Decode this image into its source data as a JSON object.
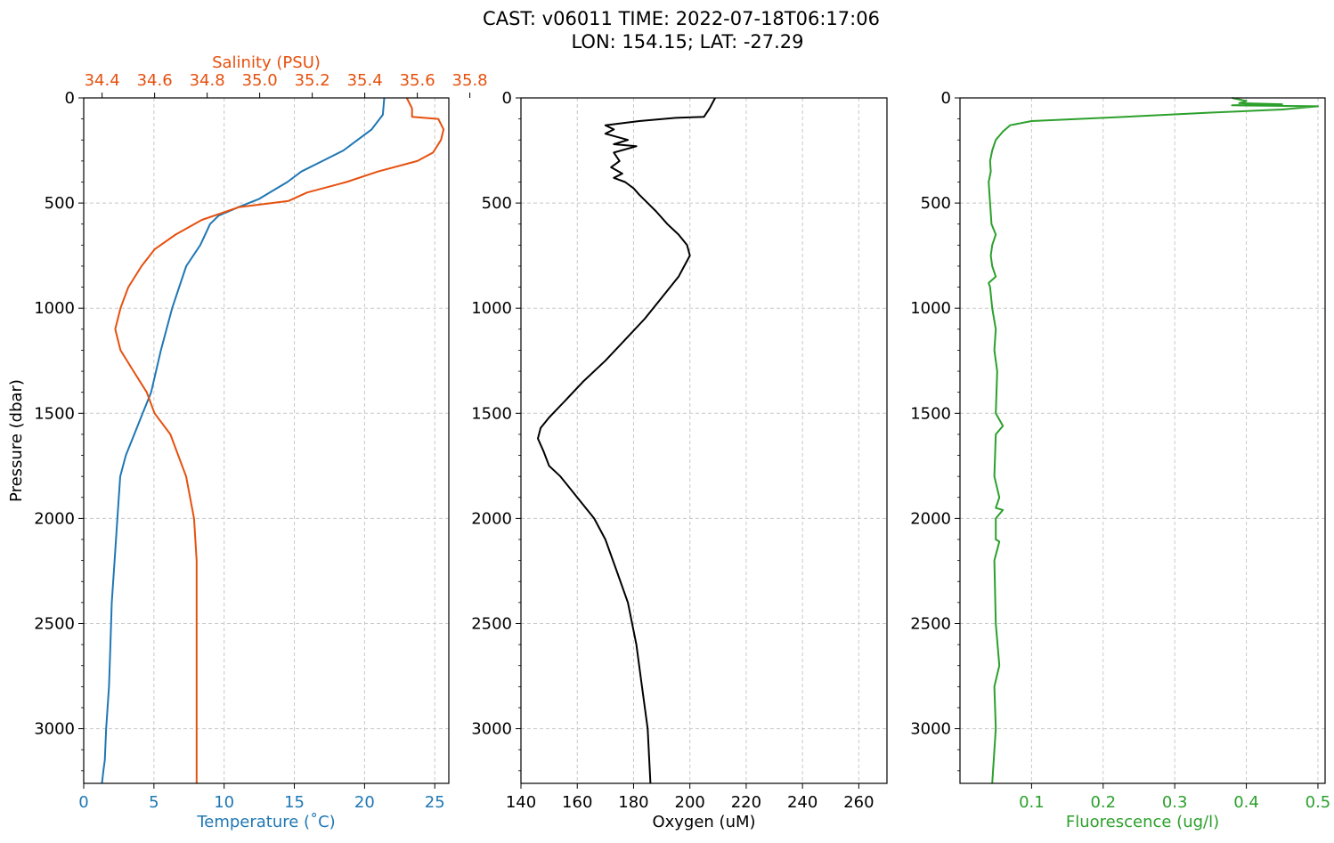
{
  "title": {
    "line1": "CAST: v06011  TIME: 2022-07-18T06:17:06",
    "line2": "LON: 154.15; LAT: -27.29"
  },
  "colors": {
    "temperature": "#1f77b4",
    "salinity": "#e6500e",
    "oxygen": "#000000",
    "fluorescence": "#2ca02c",
    "grid": "#c8c8c8"
  },
  "chart_data": [
    {
      "type": "line",
      "ylabel": "Pressure (dbar)",
      "ylim": [
        3260,
        0
      ],
      "yticks": [
        0,
        500,
        1000,
        1500,
        2000,
        2500,
        3000
      ],
      "grid": true,
      "xaxis_bottom": {
        "label": "Temperature (˚C)",
        "lim": [
          0,
          26
        ],
        "ticks": [
          0,
          5,
          10,
          15,
          20,
          25
        ]
      },
      "xaxis_top": {
        "label": "Salinity (PSU)",
        "lim": [
          34.33,
          35.72
        ],
        "ticks": [
          "34.4",
          "34.6",
          "34.8",
          "35.0",
          "35.2",
          "35.4",
          "35.6",
          "35.8"
        ]
      },
      "series": [
        {
          "axis": "bottom",
          "x": [
            21.4,
            21.3,
            20.5,
            19.5,
            18.5,
            17.0,
            15.5,
            14.5,
            13.5,
            12.5,
            11.0,
            9.6,
            9.0,
            8.3,
            7.3,
            6.3,
            5.5,
            4.8,
            4.2,
            3.6,
            3.0,
            2.6,
            2.4,
            2.2,
            2.0,
            1.9,
            1.8,
            1.6,
            1.5,
            1.4,
            1.3
          ],
          "y": [
            0,
            80,
            150,
            200,
            250,
            300,
            350,
            400,
            440,
            480,
            520,
            560,
            600,
            700,
            800,
            1000,
            1200,
            1400,
            1500,
            1600,
            1700,
            1800,
            2000,
            2200,
            2400,
            2600,
            2800,
            3000,
            3150,
            3200,
            3260
          ]
        },
        {
          "axis": "top",
          "x": [
            35.56,
            35.58,
            35.58,
            35.68,
            35.7,
            35.69,
            35.66,
            35.6,
            35.45,
            35.33,
            35.18,
            35.11,
            34.92,
            34.78,
            34.68,
            34.6,
            34.55,
            34.5,
            34.47,
            34.45,
            34.47,
            34.52,
            34.57,
            34.6,
            34.66,
            34.72,
            34.75,
            34.76,
            34.76,
            34.76,
            34.76
          ],
          "y": [
            0,
            50,
            90,
            100,
            150,
            200,
            260,
            300,
            350,
            400,
            450,
            490,
            520,
            580,
            650,
            720,
            800,
            900,
            1000,
            1100,
            1200,
            1300,
            1400,
            1500,
            1600,
            1800,
            2000,
            2200,
            2400,
            2800,
            3260
          ]
        }
      ]
    },
    {
      "type": "line",
      "xlabel": "Oxygen (uM)",
      "xlim": [
        140,
        270
      ],
      "xticks": [
        140,
        160,
        180,
        200,
        220,
        240,
        260
      ],
      "ylim": [
        3260,
        0
      ],
      "yticks": [
        0,
        500,
        1000,
        1500,
        2000,
        2500,
        3000
      ],
      "grid": true,
      "series": [
        {
          "x": [
            209,
            207,
            205,
            195,
            182,
            170,
            173,
            170,
            178,
            173,
            181,
            173,
            175,
            172,
            176,
            173,
            177,
            180,
            182,
            185,
            188,
            192,
            196,
            199,
            200,
            196,
            190,
            184,
            177,
            170,
            162,
            155,
            150,
            147,
            146,
            148,
            150,
            154,
            160,
            166,
            170,
            174,
            178,
            181,
            183,
            185,
            186
          ],
          "y": [
            0,
            50,
            90,
            95,
            110,
            130,
            150,
            170,
            200,
            220,
            230,
            260,
            300,
            330,
            360,
            380,
            400,
            430,
            460,
            500,
            540,
            600,
            650,
            700,
            750,
            850,
            950,
            1050,
            1150,
            1250,
            1350,
            1450,
            1520,
            1570,
            1620,
            1680,
            1750,
            1800,
            1900,
            2000,
            2100,
            2250,
            2400,
            2600,
            2800,
            3000,
            3260
          ]
        }
      ]
    },
    {
      "type": "line",
      "xlabel": "Fluorescence (ug/l)",
      "xlim": [
        0,
        0.51
      ],
      "xticks": [
        "0.1",
        "0.2",
        "0.3",
        "0.4",
        "0.5"
      ],
      "ylim": [
        3260,
        0
      ],
      "yticks": [
        0,
        500,
        1000,
        1500,
        2000,
        2500,
        3000
      ],
      "grid": true,
      "series": [
        {
          "x": [
            0.38,
            0.4,
            0.39,
            0.45,
            0.38,
            0.5,
            0.45,
            0.35,
            0.2,
            0.1,
            0.07,
            0.06,
            0.055,
            0.05,
            0.045,
            0.042,
            0.043,
            0.04,
            0.042,
            0.044,
            0.05,
            0.045,
            0.043,
            0.045,
            0.05,
            0.04,
            0.042,
            0.045,
            0.05,
            0.048,
            0.052,
            0.05,
            0.06,
            0.05,
            0.048,
            0.055,
            0.05,
            0.06,
            0.05,
            0.05,
            0.055,
            0.048,
            0.05,
            0.055,
            0.048,
            0.05,
            0.045
          ],
          "y": [
            0,
            15,
            25,
            30,
            35,
            40,
            55,
            70,
            95,
            110,
            130,
            160,
            180,
            200,
            250,
            300,
            350,
            400,
            500,
            600,
            650,
            700,
            750,
            800,
            850,
            880,
            900,
            1000,
            1100,
            1200,
            1300,
            1500,
            1560,
            1600,
            1800,
            1900,
            1950,
            1960,
            2000,
            2100,
            2110,
            2200,
            2500,
            2700,
            2800,
            3000,
            3260
          ]
        }
      ]
    }
  ]
}
